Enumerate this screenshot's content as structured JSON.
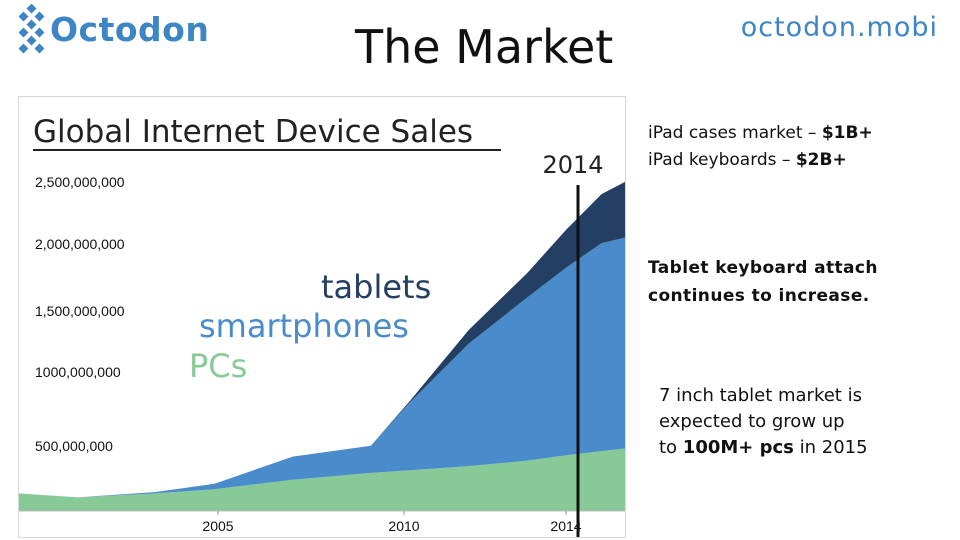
{
  "header": {
    "logo_text": "Octodon",
    "title": "The Market",
    "site": "octodon.mobi"
  },
  "notes": {
    "cases_label": "iPad cases market – ",
    "cases_value": "$1B+",
    "keyboards_label": "iPad keyboards – ",
    "keyboards_value": "$2B+",
    "attach_line1": "Tablet keyboard attach",
    "attach_line2": "continues to increase.",
    "tablet_line1": "7 inch tablet market is",
    "tablet_line2": "expected to grow up",
    "tablet_prefix": "to ",
    "tablet_value": "100M+ pcs",
    "tablet_suffix": " in 2015"
  },
  "colors": {
    "brand": "#3d86c6",
    "pcs": "#87c997",
    "smartphones": "#4a8ccb",
    "tablets": "#233f63"
  },
  "chart_data": {
    "type": "area",
    "stacked": true,
    "title": "Global Internet Device Sales",
    "x_ticks": [
      "2005",
      "2010",
      "2014"
    ],
    "y_ticks": [
      "500,000,000",
      "1000,000,000",
      "1,500,000,000",
      "2,000,000,000",
      "2,500,000,000"
    ],
    "y_tick_values": [
      500000000,
      1000000000,
      1500000000,
      2000000000,
      2500000000
    ],
    "ylim": [
      0,
      2750000000
    ],
    "xlim": [
      2000,
      2015.5
    ],
    "marker_line": {
      "x": 2014.3,
      "label": "2014"
    },
    "x": [
      2000,
      2001.5,
      2003.5,
      2005,
      2007,
      2009,
      2010,
      2011.5,
      2013,
      2014,
      2014.9,
      2015.5
    ],
    "series": [
      {
        "name": "PCs",
        "values": [
          130000000,
          100000000,
          130000000,
          160000000,
          230000000,
          280000000,
          300000000,
          330000000,
          370000000,
          410000000,
          440000000,
          460000000
        ]
      },
      {
        "name": "smartphones",
        "values": [
          0,
          0,
          10000000,
          40000000,
          170000000,
          200000000,
          500000000,
          900000000,
          1200000000,
          1380000000,
          1530000000,
          1550000000
        ]
      },
      {
        "name": "tablets",
        "values": [
          0,
          0,
          0,
          0,
          0,
          0,
          10000000,
          100000000,
          180000000,
          280000000,
          360000000,
          410000000
        ]
      }
    ]
  }
}
